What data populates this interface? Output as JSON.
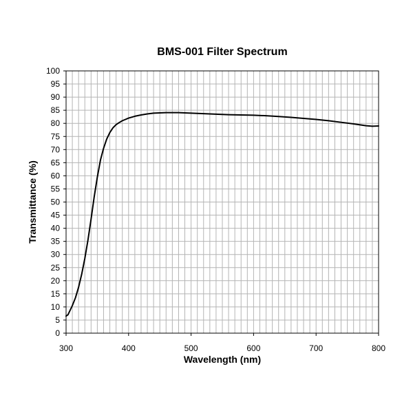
{
  "chart_data": {
    "type": "line",
    "title": "BMS-001 Filter Spectrum",
    "xlabel": "Wavelength (nm)",
    "ylabel": "Transmittance (%)",
    "xlim": [
      300,
      800
    ],
    "ylim": [
      0,
      100
    ],
    "x_ticks": [
      "300",
      "400",
      "500",
      "600",
      "700",
      "800"
    ],
    "y_ticks": [
      "0",
      "5",
      "10",
      "15",
      "20",
      "25",
      "30",
      "35",
      "40",
      "45",
      "50",
      "55",
      "60",
      "65",
      "70",
      "75",
      "80",
      "85",
      "90",
      "95",
      "100"
    ],
    "x_minor_step": 10,
    "y_major_step": 5,
    "grid": true,
    "line_color": "#000000",
    "series": [
      {
        "x": [
          300,
          303,
          306,
          310,
          315,
          320,
          325,
          330,
          335,
          340,
          345,
          350,
          355,
          360,
          365,
          370,
          375,
          380,
          385,
          390,
          395,
          400,
          410,
          420,
          430,
          440,
          450,
          460,
          470,
          480,
          490,
          500,
          520,
          540,
          560,
          580,
          600,
          620,
          640,
          660,
          680,
          700,
          720,
          740,
          760,
          780,
          790,
          800
        ],
        "y": [
          6.5,
          7.0,
          8.5,
          10.5,
          13.5,
          17.5,
          22.5,
          28.5,
          35.5,
          43.5,
          52.0,
          59.5,
          66.0,
          70.5,
          74.0,
          76.5,
          78.3,
          79.5,
          80.3,
          81.0,
          81.5,
          82.0,
          82.7,
          83.2,
          83.6,
          83.9,
          84.0,
          84.1,
          84.1,
          84.1,
          84.0,
          83.9,
          83.7,
          83.5,
          83.3,
          83.2,
          83.1,
          82.9,
          82.6,
          82.3,
          81.9,
          81.5,
          81.0,
          80.4,
          79.8,
          79.1,
          78.9,
          79.0
        ]
      }
    ]
  }
}
